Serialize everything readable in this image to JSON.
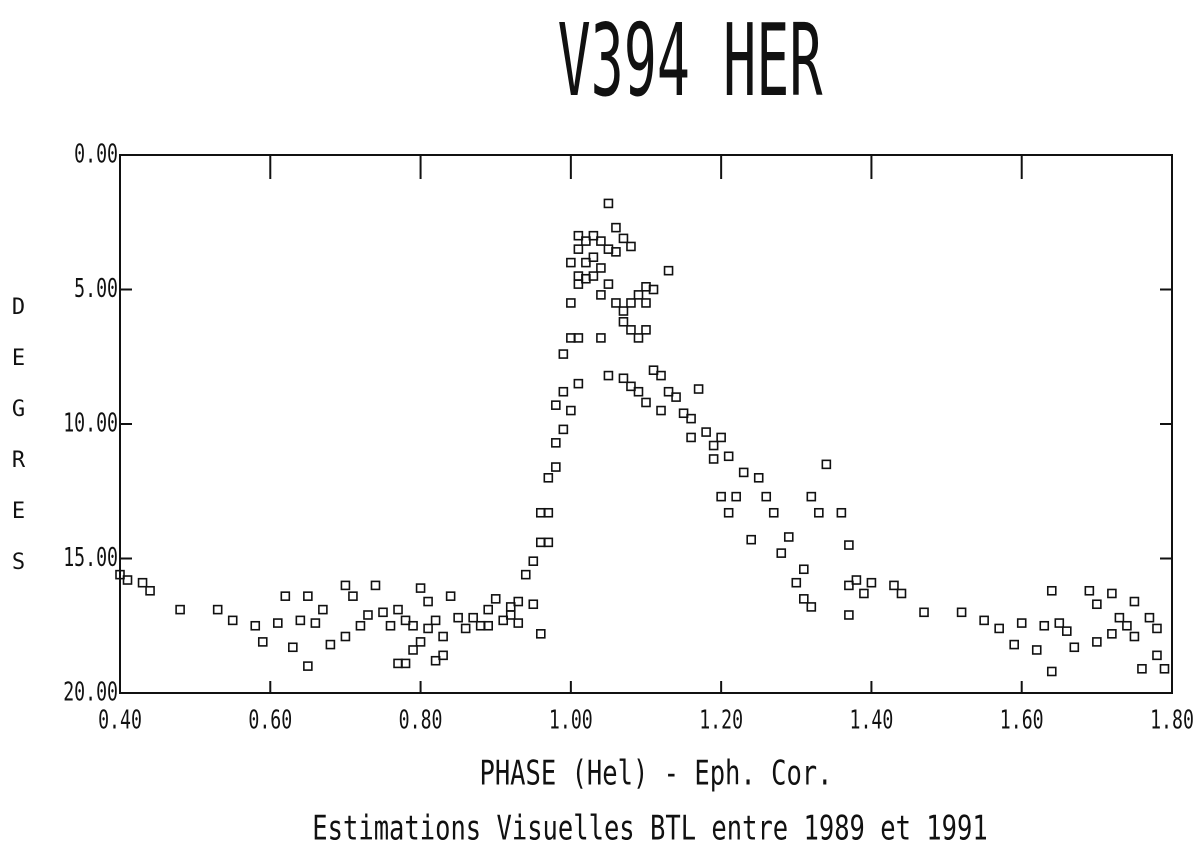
{
  "chart_data": {
    "type": "scatter",
    "title": "V394 HER",
    "x_label": "PHASE (Hel) - Eph. Cor.",
    "subtitle": "Estimations Visuelles BTL entre 1989 et 1991",
    "y_label": "DEGRES",
    "xlim": [
      0.4,
      1.8
    ],
    "ylim": [
      0,
      20
    ],
    "y_inverted": true,
    "grid": false,
    "color": "#111111",
    "xticks": [
      {
        "value": 0.4,
        "label": "0.40"
      },
      {
        "value": 0.6,
        "label": "0.60"
      },
      {
        "value": 0.8,
        "label": "0.80"
      },
      {
        "value": 1.0,
        "label": "1.00"
      },
      {
        "value": 1.2,
        "label": "1.20"
      },
      {
        "value": 1.4,
        "label": "1.40"
      },
      {
        "value": 1.6,
        "label": "1.60"
      },
      {
        "value": 1.8,
        "label": "1.80"
      }
    ],
    "yticks": [
      {
        "value": 0,
        "label": "0.00"
      },
      {
        "value": 5,
        "label": "5.00"
      },
      {
        "value": 10,
        "label": "10.00"
      },
      {
        "value": 15,
        "label": "15.00"
      },
      {
        "value": 20,
        "label": "20.00"
      }
    ],
    "x": [
      0.4,
      0.41,
      0.43,
      0.44,
      0.48,
      0.53,
      0.55,
      0.58,
      0.59,
      0.61,
      0.62,
      0.63,
      0.64,
      0.65,
      0.65,
      0.66,
      0.67,
      0.68,
      0.7,
      0.7,
      0.71,
      0.72,
      0.73,
      0.74,
      0.75,
      0.76,
      0.77,
      0.77,
      0.78,
      0.78,
      0.79,
      0.79,
      0.8,
      0.8,
      0.81,
      0.81,
      0.82,
      0.82,
      0.83,
      0.83,
      0.84,
      0.85,
      0.86,
      0.87,
      0.88,
      0.89,
      0.89,
      0.9,
      0.91,
      0.92,
      0.92,
      0.93,
      0.93,
      0.94,
      0.95,
      0.95,
      0.96,
      0.96,
      0.96,
      0.97,
      0.97,
      0.97,
      0.98,
      0.98,
      0.98,
      0.99,
      0.99,
      0.99,
      1.0,
      1.0,
      1.0,
      1.01,
      1.01,
      1.01,
      1.0,
      1.01,
      1.01,
      1.01,
      1.02,
      1.02,
      1.02,
      1.03,
      1.03,
      1.03,
      1.04,
      1.04,
      1.04,
      1.05,
      1.05,
      1.05,
      1.06,
      1.06,
      1.06,
      1.07,
      1.07,
      1.07,
      1.08,
      1.08,
      1.08,
      1.09,
      1.09,
      1.1,
      1.1,
      1.1,
      1.11,
      1.13,
      1.04,
      1.05,
      1.07,
      1.08,
      1.09,
      1.1,
      1.11,
      1.12,
      1.12,
      1.13,
      1.14,
      1.15,
      1.16,
      1.16,
      1.17,
      1.18,
      1.19,
      1.19,
      1.2,
      1.21,
      1.2,
      1.21,
      1.22,
      1.23,
      1.24,
      1.25,
      1.26,
      1.27,
      1.28,
      1.29,
      1.3,
      1.31,
      1.31,
      1.32,
      1.32,
      1.33,
      1.34,
      1.36,
      1.37,
      1.37,
      1.37,
      1.38,
      1.39,
      1.4,
      1.43,
      1.44,
      1.47,
      1.52,
      1.55,
      1.57,
      1.59,
      1.6,
      1.62,
      1.63,
      1.64,
      1.64,
      1.65,
      1.66,
      1.67,
      1.69,
      1.7,
      1.7,
      1.72,
      1.72,
      1.73,
      1.74,
      1.75,
      1.75,
      1.76,
      1.77,
      1.78,
      1.78,
      1.79
    ],
    "values": [
      15.6,
      15.8,
      15.9,
      16.2,
      16.9,
      16.9,
      17.3,
      17.5,
      18.1,
      17.4,
      16.4,
      18.3,
      17.3,
      16.4,
      19.0,
      17.4,
      16.9,
      18.2,
      17.9,
      16.0,
      16.4,
      17.5,
      17.1,
      16.0,
      17.0,
      17.5,
      18.9,
      16.9,
      17.3,
      18.9,
      17.5,
      18.4,
      16.1,
      18.1,
      17.6,
      16.6,
      17.3,
      18.8,
      17.9,
      18.6,
      16.4,
      17.2,
      17.6,
      17.2,
      17.5,
      16.9,
      17.5,
      16.5,
      17.3,
      17.1,
      16.8,
      17.4,
      16.6,
      15.6,
      15.1,
      16.7,
      17.8,
      14.4,
      13.3,
      14.4,
      12.0,
      13.3,
      11.6,
      10.7,
      9.3,
      10.2,
      8.8,
      7.4,
      9.5,
      6.8,
      5.5,
      8.5,
      6.8,
      4.8,
      4.0,
      4.5,
      3.5,
      3.0,
      3.2,
      4.0,
      4.6,
      3.0,
      3.8,
      4.5,
      3.2,
      4.2,
      5.2,
      1.8,
      3.5,
      4.8,
      3.6,
      5.5,
      2.7,
      5.8,
      3.1,
      6.2,
      5.5,
      3.4,
      6.5,
      5.2,
      6.8,
      6.5,
      4.9,
      5.5,
      5.0,
      4.3,
      6.8,
      8.2,
      8.3,
      8.6,
      8.8,
      9.2,
      8.0,
      9.5,
      8.2,
      8.8,
      9.0,
      9.6,
      9.8,
      10.5,
      8.7,
      10.3,
      11.3,
      10.8,
      10.5,
      11.2,
      12.7,
      13.3,
      12.7,
      11.8,
      14.3,
      12.0,
      12.7,
      13.3,
      14.8,
      14.2,
      15.9,
      15.4,
      16.5,
      12.7,
      16.8,
      13.3,
      11.5,
      13.3,
      14.5,
      16.0,
      17.1,
      15.8,
      16.3,
      15.9,
      16.0,
      16.3,
      17.0,
      17.0,
      17.3,
      17.6,
      18.2,
      17.4,
      18.4,
      17.5,
      19.2,
      16.2,
      17.4,
      17.7,
      18.3,
      16.2,
      18.1,
      16.7,
      16.3,
      17.8,
      17.2,
      17.5,
      16.6,
      17.9,
      19.1,
      17.2,
      18.6,
      17.6,
      19.1
    ]
  }
}
